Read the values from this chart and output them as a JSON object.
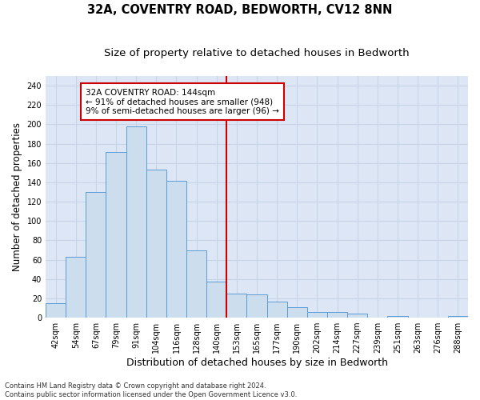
{
  "title": "32A, COVENTRY ROAD, BEDWORTH, CV12 8NN",
  "subtitle": "Size of property relative to detached houses in Bedworth",
  "xlabel": "Distribution of detached houses by size in Bedworth",
  "ylabel": "Number of detached properties",
  "footer_line1": "Contains HM Land Registry data © Crown copyright and database right 2024.",
  "footer_line2": "Contains public sector information licensed under the Open Government Licence v3.0.",
  "bar_labels": [
    "42sqm",
    "54sqm",
    "67sqm",
    "79sqm",
    "91sqm",
    "104sqm",
    "116sqm",
    "128sqm",
    "140sqm",
    "153sqm",
    "165sqm",
    "177sqm",
    "190sqm",
    "202sqm",
    "214sqm",
    "227sqm",
    "239sqm",
    "251sqm",
    "263sqm",
    "276sqm",
    "288sqm"
  ],
  "bar_values": [
    15,
    63,
    130,
    171,
    198,
    153,
    142,
    70,
    37,
    25,
    24,
    17,
    11,
    6,
    6,
    4,
    0,
    2,
    0,
    0,
    2
  ],
  "bar_color": "#ccdded",
  "bar_edge_color": "#5b9bd5",
  "vline_x": 8.5,
  "vline_color": "#cc0000",
  "annotation_text": "32A COVENTRY ROAD: 144sqm\n← 91% of detached houses are smaller (948)\n9% of semi-detached houses are larger (96) →",
  "annotation_box_color": "#ffffff",
  "annotation_box_edge": "#cc0000",
  "ylim": [
    0,
    250
  ],
  "yticks": [
    0,
    20,
    40,
    60,
    80,
    100,
    120,
    140,
    160,
    180,
    200,
    220,
    240
  ],
  "grid_color": "#c8d4e8",
  "background_color": "#dce6f5",
  "title_fontsize": 10.5,
  "subtitle_fontsize": 9.5,
  "xlabel_fontsize": 9,
  "ylabel_fontsize": 8.5,
  "tick_fontsize": 7,
  "annotation_fontsize": 7.5,
  "footer_fontsize": 6
}
